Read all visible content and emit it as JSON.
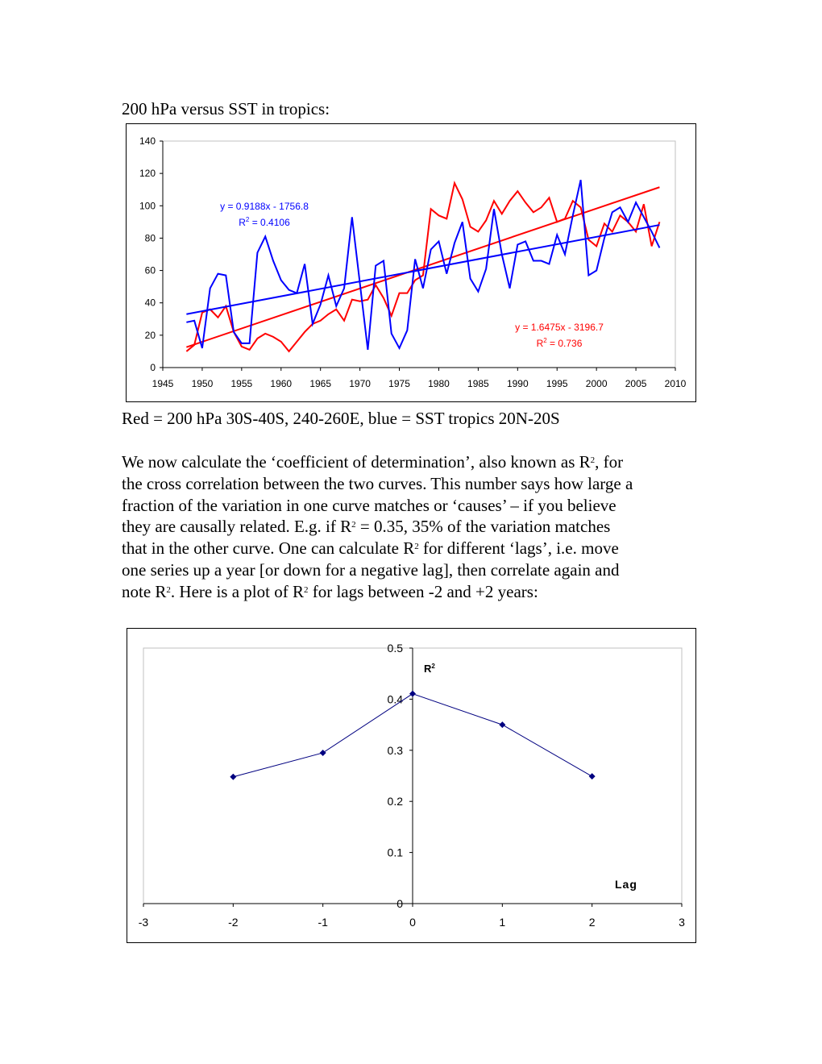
{
  "document": {
    "heading": "200 hPa versus SST in tropics:",
    "caption": "Red = 200 hPa 30S-40S, 240-260E, blue = SST tropics 20N-20S",
    "paragraph_lines": [
      [
        {
          "t": "We now calculate the ‘coefficient of determination’, also known as R"
        },
        {
          "sup": "2"
        },
        {
          "t": ", for"
        }
      ],
      [
        {
          "t": "the cross correlation between the two curves. This number says how large a"
        }
      ],
      [
        {
          "t": "fraction of the variation in one curve matches or ‘causes’ – if you believe"
        }
      ],
      [
        {
          "t": "they are causally related. E.g. if R"
        },
        {
          "sup": "2"
        },
        {
          "t": " = 0.35, 35% of the variation matches"
        }
      ],
      [
        {
          "t": "that in the other curve. One can calculate R"
        },
        {
          "sup": "2"
        },
        {
          "t": " for different ‘lags’, i.e. move"
        }
      ],
      [
        {
          "t": "one series up a year [or down for a negative lag], then correlate again and"
        }
      ],
      [
        {
          "t": "note R"
        },
        {
          "sup": "2"
        },
        {
          "t": ". Here is a plot of R"
        },
        {
          "sup": "2"
        },
        {
          "t": " for lags between -2 and +2 years:"
        }
      ]
    ]
  },
  "chart_data": [
    {
      "type": "line",
      "xlim": [
        1945,
        2010
      ],
      "ylim": [
        0,
        140
      ],
      "xticks": [
        1945,
        1950,
        1955,
        1960,
        1965,
        1970,
        1975,
        1980,
        1985,
        1990,
        1995,
        2000,
        2005,
        2010
      ],
      "yticks": [
        0,
        20,
        40,
        60,
        80,
        100,
        120,
        140
      ],
      "grid": false,
      "x": [
        1948,
        1949,
        1950,
        1951,
        1952,
        1953,
        1954,
        1955,
        1956,
        1957,
        1958,
        1959,
        1960,
        1961,
        1962,
        1963,
        1964,
        1965,
        1966,
        1967,
        1968,
        1969,
        1970,
        1971,
        1972,
        1973,
        1974,
        1975,
        1976,
        1977,
        1978,
        1979,
        1980,
        1981,
        1982,
        1983,
        1984,
        1985,
        1986,
        1987,
        1988,
        1989,
        1990,
        1991,
        1992,
        1993,
        1994,
        1995,
        1996,
        1997,
        1998,
        1999,
        2000,
        2001,
        2002,
        2003,
        2004,
        2005,
        2006,
        2007,
        2008
      ],
      "series": [
        {
          "color": "#ff0000",
          "values": [
            10,
            14,
            34,
            36,
            31,
            38,
            22,
            13,
            11,
            18,
            21,
            19,
            16,
            10,
            16,
            22,
            27,
            29,
            33,
            36,
            29,
            42,
            41,
            42,
            51,
            43,
            32,
            46,
            46,
            54,
            57,
            98,
            94,
            92,
            114,
            104,
            87,
            84,
            91,
            103,
            95,
            103,
            109,
            102,
            96,
            99,
            105,
            90,
            92,
            103,
            99,
            79,
            75,
            89,
            84,
            94,
            90,
            84,
            101,
            75,
            90
          ],
          "trendline": {
            "slope": 1.6475,
            "intercept": -3196.7,
            "equation": "y = 1.6475x - 3196.7",
            "r2_prefix": "R",
            "r2_sup": "2",
            "r2_value": " = 0.736"
          }
        },
        {
          "color": "#0000ff",
          "values": [
            28,
            29,
            12,
            49,
            58,
            57,
            22,
            15,
            15,
            71,
            81,
            66,
            54,
            48,
            46,
            64,
            27,
            39,
            57,
            38,
            49,
            93,
            52,
            11,
            63,
            66,
            21,
            12,
            23,
            67,
            49,
            73,
            78,
            58,
            77,
            90,
            55,
            47,
            61,
            98,
            70,
            49,
            76,
            78,
            66,
            66,
            64,
            82,
            70,
            94,
            116,
            57,
            60,
            80,
            96,
            99,
            90,
            102,
            93,
            84,
            74
          ],
          "trendline": {
            "slope": 0.9188,
            "intercept": -1756.8,
            "equation": "y = 0.9188x - 1756.8",
            "r2_prefix": "R",
            "r2_sup": "2",
            "r2_value": " = 0.4106"
          }
        }
      ]
    },
    {
      "type": "line",
      "xlim": [
        -3,
        3
      ],
      "ylim": [
        0,
        0.5
      ],
      "xticks": [
        "-3",
        "-2",
        "-1",
        "0",
        "1",
        "2",
        "3"
      ],
      "yticks": [
        "0",
        "0.1",
        "0.2",
        "0.3",
        "0.4",
        "0.5"
      ],
      "ylabel_main": "R",
      "ylabel_sup": "2",
      "xlabel": "Lag",
      "grid": false,
      "x": [
        -2,
        -1,
        0,
        1,
        2
      ],
      "series": [
        {
          "color": "#000080",
          "marker": "diamond",
          "values": [
            0.248,
            0.295,
            0.4106,
            0.35,
            0.249
          ]
        }
      ]
    }
  ]
}
